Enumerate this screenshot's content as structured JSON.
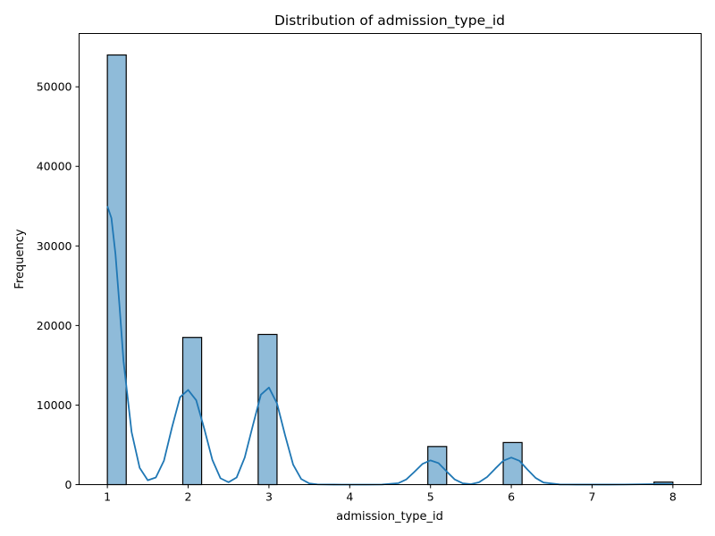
{
  "chart_data": {
    "type": "bar",
    "title": "Distribution of admission_type_id",
    "xlabel": "admission_type_id",
    "ylabel": "Frequency",
    "xlim": [
      0.65,
      8.35
    ],
    "ylim": [
      0,
      56700
    ],
    "xticks": [
      1,
      2,
      3,
      4,
      5,
      6,
      7,
      8
    ],
    "yticks": [
      0,
      10000,
      20000,
      30000,
      40000,
      50000
    ],
    "bin_width": 0.2333,
    "bins": [
      {
        "x_start": 1.0,
        "x_end": 1.2333,
        "count": 54000
      },
      {
        "x_start": 1.9333,
        "x_end": 2.1667,
        "count": 18500
      },
      {
        "x_start": 2.8667,
        "x_end": 3.1,
        "count": 18870
      },
      {
        "x_start": 4.9667,
        "x_end": 5.2,
        "count": 4790
      },
      {
        "x_start": 5.9,
        "x_end": 6.1333,
        "count": 5290
      },
      {
        "x_start": 7.7667,
        "x_end": 8.0,
        "count": 320
      }
    ],
    "kde": {
      "x": [
        1.0,
        1.05,
        1.1,
        1.15,
        1.2,
        1.3,
        1.4,
        1.5,
        1.6,
        1.7,
        1.8,
        1.9,
        2.0,
        2.1,
        2.2,
        2.3,
        2.4,
        2.5,
        2.6,
        2.7,
        2.8,
        2.9,
        3.0,
        3.1,
        3.2,
        3.3,
        3.4,
        3.5,
        3.6,
        3.8,
        4.0,
        4.2,
        4.4,
        4.6,
        4.7,
        4.8,
        4.9,
        5.0,
        5.1,
        5.2,
        5.3,
        5.4,
        5.5,
        5.6,
        5.7,
        5.8,
        5.9,
        6.0,
        6.1,
        6.2,
        6.3,
        6.4,
        6.6,
        6.8,
        7.0,
        7.2,
        7.4,
        7.6,
        7.8,
        8.0
      ],
      "y": [
        35000,
        33500,
        29000,
        22500,
        15500,
        6600,
        2100,
        550,
        900,
        3000,
        7200,
        11000,
        11900,
        10600,
        7000,
        3100,
        800,
        300,
        900,
        3400,
        7400,
        11300,
        12200,
        10200,
        6200,
        2500,
        700,
        150,
        30,
        5,
        3,
        3,
        10,
        180,
        650,
        1600,
        2600,
        3050,
        2700,
        1650,
        650,
        160,
        60,
        300,
        950,
        2000,
        3000,
        3400,
        3000,
        1900,
        850,
        260,
        20,
        5,
        5,
        5,
        10,
        40,
        70,
        60
      ]
    },
    "bar_color": "#1f77b4",
    "bar_alpha": 0.5,
    "kde_color": "#1f77b4",
    "grid": false,
    "legend": "none"
  }
}
